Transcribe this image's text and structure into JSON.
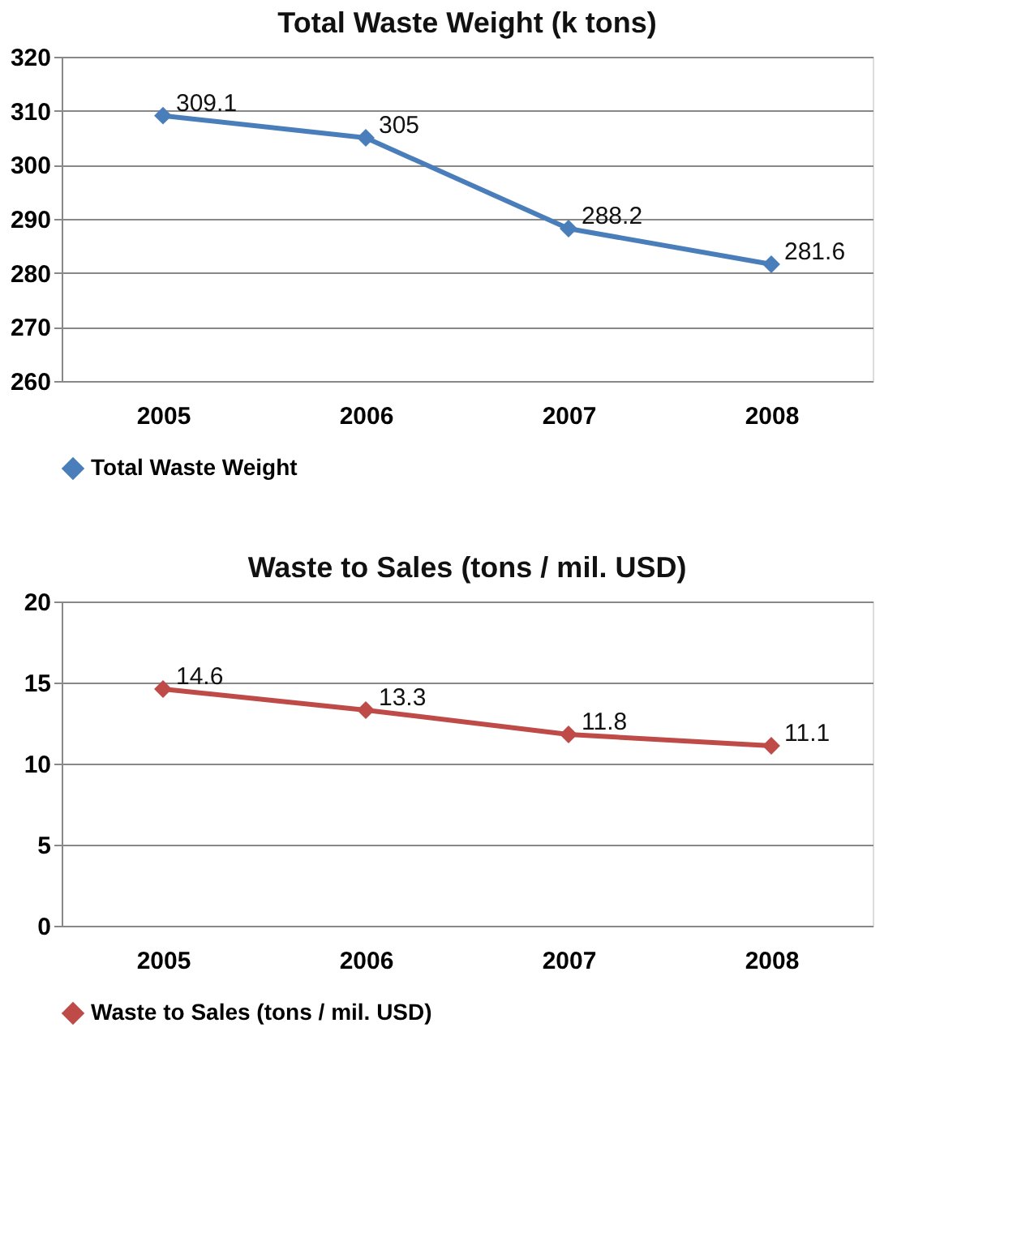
{
  "chart_data": [
    {
      "type": "line",
      "title": "Total Waste Weight (k tons)",
      "categories": [
        "2005",
        "2006",
        "2007",
        "2008"
      ],
      "series": [
        {
          "name": "Total Waste Weight",
          "color": "#4a7ebb",
          "values": [
            309.1,
            305,
            288.2,
            281.6
          ]
        }
      ],
      "ylim": [
        260,
        320
      ],
      "yticks": [
        260,
        270,
        280,
        290,
        300,
        310,
        320
      ],
      "grid": "y",
      "legend": "bottom",
      "marker": "diamond",
      "line_style": "solid",
      "data_labels": true
    },
    {
      "type": "line",
      "title": "Waste to Sales (tons / mil. USD)",
      "categories": [
        "2005",
        "2006",
        "2007",
        "2008"
      ],
      "series": [
        {
          "name": "Waste to Sales (tons / mil. USD)",
          "color": "#be4b48",
          "values": [
            14.6,
            13.3,
            11.8,
            11.1
          ]
        }
      ],
      "ylim": [
        0,
        20
      ],
      "yticks": [
        0,
        5,
        10,
        15,
        20
      ],
      "grid": "y",
      "legend": "bottom",
      "marker": "diamond",
      "line_style": "solid",
      "data_labels": true
    }
  ]
}
